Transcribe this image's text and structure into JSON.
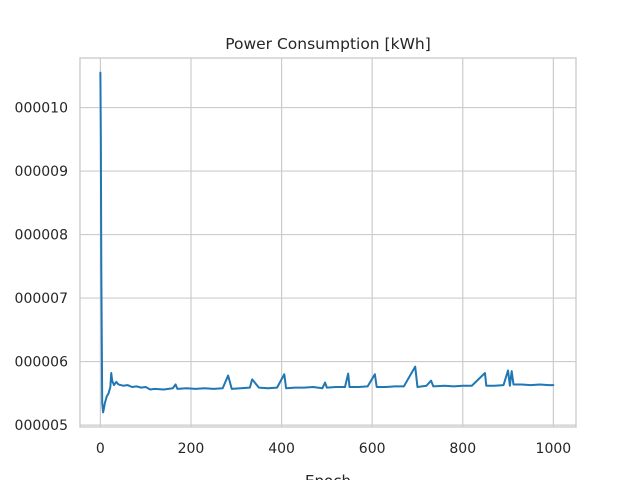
{
  "chart_data": {
    "type": "line",
    "title": "Power Consumption [kWh]",
    "xlabel": "Epoch",
    "ylabel": "",
    "xlim": [
      -45,
      1050
    ],
    "ylim": [
      4.97e-05,
      0.0001078
    ],
    "grid": true,
    "color": "#1f77b4",
    "x_ticks": [
      0,
      200,
      400,
      600,
      800,
      1000
    ],
    "x_tick_labels": [
      "0",
      "200",
      "400",
      "600",
      "800",
      "1000"
    ],
    "y_ticks": [
      5e-05,
      6e-05,
      7e-05,
      8e-05,
      9e-05,
      0.0001
    ],
    "y_tick_labels": [
      "000005",
      "000006",
      "000007",
      "000008",
      "000009",
      "000010"
    ],
    "series": [
      {
        "x": [
          0,
          1,
          2,
          4,
          6,
          8,
          10,
          14,
          18,
          22,
          24,
          26,
          30,
          35,
          40,
          50,
          60,
          70,
          80,
          90,
          100,
          110,
          120,
          140,
          160,
          166,
          170,
          190,
          210,
          230,
          250,
          270,
          282,
          290,
          310,
          330,
          335,
          350,
          370,
          390,
          406,
          410,
          430,
          450,
          470,
          490,
          496,
          500,
          520,
          540,
          547,
          550,
          570,
          590,
          606,
          610,
          630,
          650,
          670,
          695,
          700,
          720,
          730,
          735,
          760,
          780,
          800,
          820,
          849,
          852,
          870,
          890,
          900,
          904,
          908,
          912,
          930,
          950,
          970,
          990,
          1000
        ],
        "y": [
          0.0001055,
          9.5e-05,
          7.5e-05,
          5.35e-05,
          5.2e-05,
          5.27e-05,
          5.35e-05,
          5.45e-05,
          5.5e-05,
          5.6e-05,
          5.82e-05,
          5.7e-05,
          5.63e-05,
          5.68e-05,
          5.64e-05,
          5.62e-05,
          5.63e-05,
          5.6e-05,
          5.61e-05,
          5.59e-05,
          5.6e-05,
          5.56e-05,
          5.57e-05,
          5.56e-05,
          5.58e-05,
          5.64e-05,
          5.57e-05,
          5.58e-05,
          5.57e-05,
          5.58e-05,
          5.57e-05,
          5.58e-05,
          5.78e-05,
          5.57e-05,
          5.58e-05,
          5.59e-05,
          5.72e-05,
          5.59e-05,
          5.58e-05,
          5.59e-05,
          5.8e-05,
          5.58e-05,
          5.59e-05,
          5.59e-05,
          5.6e-05,
          5.58e-05,
          5.67e-05,
          5.59e-05,
          5.6e-05,
          5.6e-05,
          5.81e-05,
          5.6e-05,
          5.6e-05,
          5.61e-05,
          5.8e-05,
          5.6e-05,
          5.6e-05,
          5.61e-05,
          5.61e-05,
          5.92e-05,
          5.6e-05,
          5.62e-05,
          5.7e-05,
          5.61e-05,
          5.62e-05,
          5.61e-05,
          5.62e-05,
          5.62e-05,
          5.82e-05,
          5.62e-05,
          5.62e-05,
          5.63e-05,
          5.86e-05,
          5.62e-05,
          5.85e-05,
          5.64e-05,
          5.64e-05,
          5.63e-05,
          5.64e-05,
          5.63e-05,
          5.63e-05
        ]
      }
    ]
  }
}
